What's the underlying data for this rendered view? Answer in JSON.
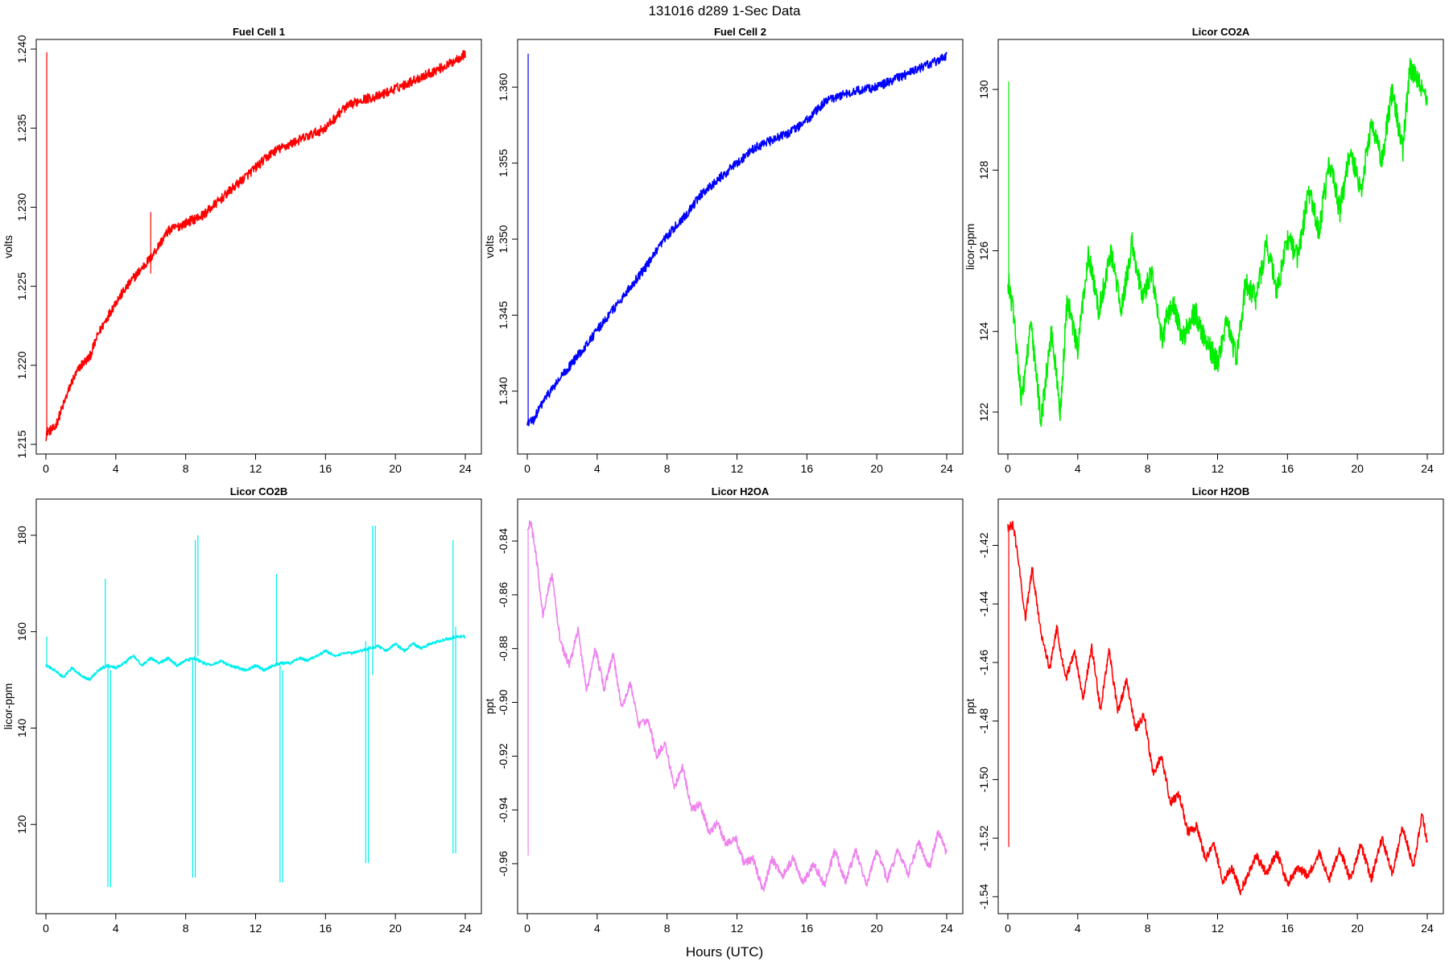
{
  "figure": {
    "title": "131016    d289    1-Sec Data",
    "xlabel": "Hours (UTC)"
  },
  "chart_data": [
    {
      "type": "line",
      "title": "Fuel Cell 1",
      "ylabel": "volts",
      "color": "#ff0000",
      "xlim": [
        0,
        24
      ],
      "ylim": [
        1.215,
        1.24
      ],
      "xticks": [
        0,
        4,
        8,
        12,
        16,
        20,
        24
      ],
      "xtick_labels": [
        "0",
        "4",
        "8",
        "12",
        "16",
        "20",
        "24"
      ],
      "yticks": [
        1.215,
        1.22,
        1.225,
        1.23,
        1.235,
        1.24
      ],
      "ytick_labels": [
        "1.215",
        "1.220",
        "1.225",
        "1.230",
        "1.235",
        "1.240"
      ],
      "noise": 0.0003,
      "x": [
        0,
        0.05,
        0.5,
        1,
        1.5,
        2,
        2.5,
        3,
        4,
        5,
        6,
        7,
        8,
        9,
        10,
        11,
        12,
        13,
        14,
        15,
        16,
        17,
        18,
        19,
        20,
        21,
        22,
        23,
        24
      ],
      "y": [
        1.2155,
        1.2158,
        1.216,
        1.2175,
        1.219,
        1.22,
        1.2205,
        1.222,
        1.224,
        1.2255,
        1.2268,
        1.2285,
        1.229,
        1.2295,
        1.2305,
        1.2315,
        1.2325,
        1.2335,
        1.234,
        1.2345,
        1.235,
        1.2362,
        1.2368,
        1.237,
        1.2375,
        1.238,
        1.2385,
        1.239,
        1.2397
      ],
      "spikes": [
        {
          "x": 0.05,
          "from": 1.2155,
          "to": 1.2398
        },
        {
          "x": 6.0,
          "from": 1.2258,
          "to": 1.2297
        }
      ]
    },
    {
      "type": "line",
      "title": "Fuel Cell 2",
      "ylabel": "volts",
      "color": "#0000ff",
      "xlim": [
        0,
        24
      ],
      "ylim": [
        1.3365,
        1.3625
      ],
      "xticks": [
        0,
        4,
        8,
        12,
        16,
        20,
        24
      ],
      "xtick_labels": [
        "0",
        "4",
        "8",
        "12",
        "16",
        "20",
        "24"
      ],
      "yticks": [
        1.34,
        1.345,
        1.35,
        1.355,
        1.36
      ],
      "ytick_labels": [
        "1.340",
        "1.345",
        "1.350",
        "1.355",
        "1.360"
      ],
      "noise": 0.0003,
      "x": [
        0,
        0.05,
        0.3,
        1,
        2,
        3,
        4,
        5,
        6,
        7,
        8,
        9,
        10,
        11,
        12,
        13,
        14,
        15,
        16,
        17,
        18,
        19,
        20,
        21,
        22,
        23,
        24
      ],
      "y": [
        1.3378,
        1.338,
        1.338,
        1.3395,
        1.341,
        1.3425,
        1.344,
        1.3455,
        1.347,
        1.3485,
        1.3502,
        1.3515,
        1.353,
        1.354,
        1.355,
        1.356,
        1.3565,
        1.357,
        1.3578,
        1.359,
        1.3595,
        1.3598,
        1.36,
        1.3605,
        1.361,
        1.3615,
        1.362
      ],
      "spikes": [
        {
          "x": 0.05,
          "from": 1.3378,
          "to": 1.3622
        }
      ]
    },
    {
      "type": "line",
      "title": "Licor CO2A",
      "ylabel": "licor-ppm",
      "color": "#00ee00",
      "xlim": [
        0,
        24
      ],
      "ylim": [
        121.2,
        131.0
      ],
      "xticks": [
        0,
        4,
        8,
        12,
        16,
        20,
        24
      ],
      "xtick_labels": [
        "0",
        "4",
        "8",
        "12",
        "16",
        "20",
        "24"
      ],
      "yticks": [
        122,
        124,
        126,
        128,
        130
      ],
      "ytick_labels": [
        "122",
        "124",
        "126",
        "128",
        "130"
      ],
      "noise": 0.3,
      "x": [
        0,
        0.05,
        0.3,
        0.8,
        1.3,
        1.9,
        2.5,
        3.0,
        3.4,
        4.0,
        4.6,
        5.2,
        5.9,
        6.5,
        7.1,
        7.7,
        8.2,
        8.8,
        9.4,
        10.0,
        10.7,
        11.3,
        12.0,
        12.5,
        13.1,
        13.6,
        14.2,
        14.8,
        15.4,
        16.0,
        16.6,
        17.2,
        17.8,
        18.4,
        19.0,
        19.6,
        20.2,
        20.8,
        21.4,
        22.0,
        22.6,
        23.0,
        23.5,
        24.0
      ],
      "y": [
        125.0,
        125.2,
        124.5,
        122.3,
        124.2,
        121.8,
        124.0,
        122.0,
        124.8,
        123.5,
        126.0,
        124.5,
        126.0,
        124.5,
        126.2,
        124.8,
        125.5,
        123.8,
        124.8,
        123.8,
        124.5,
        123.8,
        123.2,
        124.3,
        123.3,
        125.2,
        124.8,
        126.2,
        125.0,
        126.3,
        125.8,
        127.5,
        126.5,
        128.2,
        127.0,
        128.5,
        127.5,
        129.2,
        128.2,
        130.0,
        128.5,
        130.5,
        130.2,
        129.8
      ],
      "spikes": [
        {
          "x": 0.05,
          "from": 125.0,
          "to": 130.2
        }
      ]
    },
    {
      "type": "line",
      "title": "Licor CO2B",
      "ylabel": "licor-ppm",
      "color": "#00eeee",
      "xlim": [
        0,
        24
      ],
      "ylim": [
        103.5,
        185.5
      ],
      "xticks": [
        0,
        4,
        8,
        12,
        16,
        20,
        24
      ],
      "xtick_labels": [
        "0",
        "4",
        "8",
        "12",
        "16",
        "20",
        "24"
      ],
      "yticks": [
        120,
        140,
        160,
        180
      ],
      "ytick_labels": [
        "120",
        "140",
        "160",
        "180"
      ],
      "noise": 0.3,
      "x": [
        0,
        0.5,
        1.0,
        1.5,
        2.0,
        2.5,
        3.0,
        3.5,
        4.0,
        4.5,
        5.0,
        5.5,
        6.0,
        6.5,
        7.0,
        7.5,
        8.0,
        8.5,
        9.0,
        9.5,
        10.0,
        10.5,
        11.0,
        11.5,
        12.0,
        12.5,
        13.0,
        13.5,
        14.0,
        14.5,
        15.0,
        15.5,
        16.0,
        16.5,
        17.0,
        17.5,
        18.0,
        18.5,
        19.0,
        19.5,
        20.0,
        20.5,
        21.0,
        21.5,
        22.0,
        22.5,
        23.0,
        23.5,
        24.0
      ],
      "y": [
        153.0,
        152.0,
        150.5,
        152.5,
        151.0,
        150.0,
        152.0,
        153.0,
        152.5,
        153.5,
        155.0,
        153.0,
        154.5,
        153.5,
        154.5,
        153.0,
        154.0,
        154.5,
        153.5,
        153.0,
        154.0,
        153.0,
        152.5,
        152.0,
        153.0,
        152.0,
        153.0,
        153.5,
        153.5,
        154.5,
        154.0,
        155.0,
        156.0,
        155.0,
        155.5,
        155.5,
        156.0,
        156.5,
        157.0,
        156.0,
        157.5,
        156.0,
        157.5,
        156.5,
        157.5,
        158.0,
        158.5,
        159.0,
        159.0
      ],
      "spikes": [
        {
          "x": 0.05,
          "from": 153.0,
          "to": 159.0
        },
        {
          "x": 3.4,
          "from": 153.0,
          "to": 171.0
        },
        {
          "x": 3.55,
          "from": 107.0,
          "to": 153.0
        },
        {
          "x": 3.7,
          "from": 107.0,
          "to": 152.0
        },
        {
          "x": 8.4,
          "from": 109.0,
          "to": 154.0
        },
        {
          "x": 8.55,
          "from": 109.0,
          "to": 179.0
        },
        {
          "x": 8.7,
          "from": 155.0,
          "to": 180.0
        },
        {
          "x": 13.2,
          "from": 153.0,
          "to": 172.0
        },
        {
          "x": 13.4,
          "from": 108.0,
          "to": 153.0
        },
        {
          "x": 13.55,
          "from": 108.0,
          "to": 152.0
        },
        {
          "x": 18.3,
          "from": 112.0,
          "to": 158.0
        },
        {
          "x": 18.45,
          "from": 112.0,
          "to": 157.0
        },
        {
          "x": 18.7,
          "from": 151.0,
          "to": 182.0
        },
        {
          "x": 18.85,
          "from": 157.0,
          "to": 182.0
        },
        {
          "x": 23.3,
          "from": 114.0,
          "to": 179.0
        },
        {
          "x": 23.45,
          "from": 114.0,
          "to": 161.0
        }
      ]
    },
    {
      "type": "line",
      "title": "Licor H2OA",
      "ylabel": "ppt",
      "color": "#ee82ee",
      "xlim": [
        0,
        24
      ],
      "ylim": [
        -0.975,
        -0.828
      ],
      "xticks": [
        0,
        4,
        8,
        12,
        16,
        20,
        24
      ],
      "xtick_labels": [
        "0",
        "4",
        "8",
        "12",
        "16",
        "20",
        "24"
      ],
      "yticks": [
        -0.96,
        -0.94,
        -0.92,
        -0.9,
        -0.88,
        -0.86,
        -0.84
      ],
      "ytick_labels": [
        "-0.96",
        "-0.94",
        "-0.92",
        "-0.90",
        "-0.88",
        "-0.86",
        "-0.84"
      ],
      "noise": 0.0015,
      "x": [
        0,
        0.2,
        0.5,
        0.9,
        1.4,
        1.9,
        2.4,
        2.9,
        3.4,
        3.9,
        4.4,
        4.9,
        5.4,
        5.9,
        6.4,
        6.9,
        7.4,
        7.9,
        8.4,
        8.9,
        9.4,
        9.9,
        10.4,
        10.9,
        11.4,
        11.9,
        12.4,
        12.9,
        13.5,
        14.0,
        14.6,
        15.2,
        15.8,
        16.4,
        17.0,
        17.6,
        18.2,
        18.8,
        19.4,
        20.0,
        20.6,
        21.2,
        21.8,
        22.4,
        23.0,
        23.5,
        24.0
      ],
      "y": [
        -0.836,
        -0.833,
        -0.845,
        -0.868,
        -0.852,
        -0.878,
        -0.886,
        -0.873,
        -0.896,
        -0.88,
        -0.895,
        -0.882,
        -0.902,
        -0.893,
        -0.909,
        -0.906,
        -0.92,
        -0.915,
        -0.932,
        -0.924,
        -0.94,
        -0.938,
        -0.948,
        -0.945,
        -0.953,
        -0.95,
        -0.96,
        -0.958,
        -0.97,
        -0.958,
        -0.965,
        -0.958,
        -0.967,
        -0.96,
        -0.968,
        -0.955,
        -0.967,
        -0.955,
        -0.968,
        -0.955,
        -0.966,
        -0.955,
        -0.964,
        -0.952,
        -0.962,
        -0.948,
        -0.956
      ],
      "spikes": [
        {
          "x": 0.05,
          "from": -0.957,
          "to": -0.836
        }
      ]
    },
    {
      "type": "line",
      "title": "Licor H2OB",
      "ylabel": "ppt",
      "color": "#ff0000",
      "xlim": [
        0,
        24
      ],
      "ylim": [
        -1.5425,
        -1.4075
      ],
      "xticks": [
        0,
        4,
        8,
        12,
        16,
        20,
        24
      ],
      "xtick_labels": [
        "0",
        "4",
        "8",
        "12",
        "16",
        "20",
        "24"
      ],
      "yticks": [
        -1.54,
        -1.52,
        -1.5,
        -1.48,
        -1.46,
        -1.44,
        -1.42
      ],
      "ytick_labels": [
        "-1.54",
        "-1.52",
        "-1.50",
        "-1.48",
        "-1.46",
        "-1.44",
        "-1.42"
      ],
      "noise": 0.0015,
      "x": [
        0,
        0.3,
        0.6,
        1.0,
        1.4,
        1.9,
        2.4,
        2.8,
        3.3,
        3.8,
        4.3,
        4.8,
        5.3,
        5.8,
        6.3,
        6.8,
        7.3,
        7.8,
        8.3,
        8.8,
        9.3,
        9.8,
        10.3,
        10.8,
        11.3,
        11.8,
        12.3,
        12.8,
        13.3,
        13.7,
        14.2,
        14.8,
        15.4,
        16.0,
        16.6,
        17.2,
        17.8,
        18.4,
        19.0,
        19.6,
        20.2,
        20.8,
        21.4,
        22.0,
        22.6,
        23.2,
        23.7,
        24.0
      ],
      "y": [
        -1.414,
        -1.413,
        -1.425,
        -1.445,
        -1.428,
        -1.45,
        -1.462,
        -1.448,
        -1.466,
        -1.456,
        -1.472,
        -1.455,
        -1.476,
        -1.456,
        -1.477,
        -1.466,
        -1.483,
        -1.478,
        -1.498,
        -1.492,
        -1.508,
        -1.505,
        -1.518,
        -1.516,
        -1.527,
        -1.522,
        -1.535,
        -1.53,
        -1.538,
        -1.533,
        -1.526,
        -1.532,
        -1.525,
        -1.536,
        -1.53,
        -1.533,
        -1.525,
        -1.534,
        -1.524,
        -1.534,
        -1.522,
        -1.534,
        -1.52,
        -1.532,
        -1.516,
        -1.53,
        -1.512,
        -1.522
      ],
      "spikes": [
        {
          "x": 0.05,
          "from": -1.523,
          "to": -1.414
        }
      ]
    }
  ]
}
